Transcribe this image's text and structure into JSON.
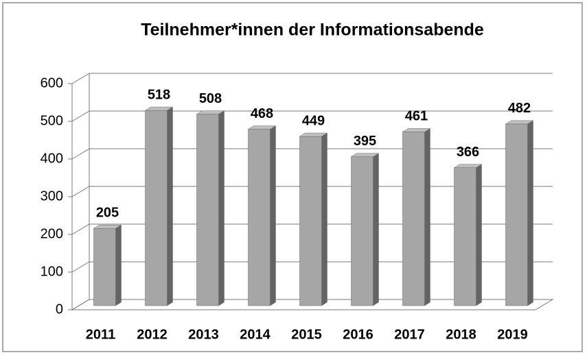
{
  "chart_data": {
    "type": "bar3d",
    "title": "Teilnehmer*innen der Informationsabende",
    "categories": [
      "2011",
      "2012",
      "2013",
      "2014",
      "2015",
      "2016",
      "2017",
      "2018",
      "2019"
    ],
    "values": [
      205,
      518,
      508,
      468,
      449,
      395,
      461,
      366,
      482
    ],
    "color": "#a6a6a6",
    "ylim": [
      0,
      600
    ],
    "yticks": [
      0,
      100,
      200,
      300,
      400,
      500,
      600
    ],
    "grid": true
  }
}
